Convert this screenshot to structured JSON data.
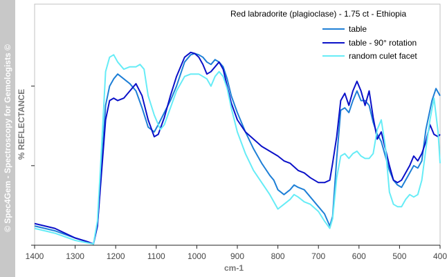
{
  "sidebar": {
    "text": "© Spec4Gem - Spectroscopy for Gemologists ©"
  },
  "chart_data": {
    "type": "line",
    "title": "Red labradorite (plagioclase) - 1.75 ct - Ethiopia",
    "xlabel": "cm-1",
    "ylabel": "% REFLECTANCE",
    "xlim": [
      1400,
      400
    ],
    "ylim": [
      0,
      100
    ],
    "x_ticks": [
      1400,
      1300,
      1200,
      1100,
      1000,
      900,
      800,
      700,
      600,
      500,
      400
    ],
    "y_ticks": [
      0,
      33,
      66
    ],
    "y_tick_labels_shown": false,
    "grid": false,
    "legend_position": "top-right",
    "series": [
      {
        "name": "table",
        "color": "#1e7fd6",
        "points": [
          [
            1400,
            8
          ],
          [
            1350,
            6
          ],
          [
            1300,
            3
          ],
          [
            1270,
            1.5
          ],
          [
            1255,
            0.5
          ],
          [
            1245,
            8
          ],
          [
            1235,
            32
          ],
          [
            1225,
            58
          ],
          [
            1215,
            66
          ],
          [
            1205,
            69
          ],
          [
            1195,
            71
          ],
          [
            1180,
            69
          ],
          [
            1165,
            67
          ],
          [
            1150,
            64
          ],
          [
            1135,
            57
          ],
          [
            1120,
            49
          ],
          [
            1105,
            47
          ],
          [
            1095,
            50
          ],
          [
            1080,
            55
          ],
          [
            1065,
            60
          ],
          [
            1050,
            66
          ],
          [
            1030,
            76
          ],
          [
            1015,
            79
          ],
          [
            1005,
            79.5
          ],
          [
            995,
            79
          ],
          [
            985,
            78
          ],
          [
            975,
            76
          ],
          [
            965,
            75
          ],
          [
            955,
            77
          ],
          [
            945,
            76
          ],
          [
            935,
            74
          ],
          [
            925,
            69
          ],
          [
            915,
            62
          ],
          [
            900,
            55
          ],
          [
            880,
            47
          ],
          [
            860,
            40
          ],
          [
            840,
            34
          ],
          [
            820,
            29
          ],
          [
            810,
            27
          ],
          [
            800,
            23
          ],
          [
            785,
            21
          ],
          [
            770,
            23
          ],
          [
            760,
            25
          ],
          [
            750,
            24
          ],
          [
            735,
            23
          ],
          [
            720,
            20
          ],
          [
            700,
            16
          ],
          [
            685,
            13
          ],
          [
            672,
            8
          ],
          [
            665,
            12
          ],
          [
            655,
            36
          ],
          [
            645,
            56
          ],
          [
            635,
            57
          ],
          [
            625,
            55
          ],
          [
            615,
            60
          ],
          [
            605,
            64
          ],
          [
            595,
            60
          ],
          [
            585,
            60
          ],
          [
            575,
            58
          ],
          [
            565,
            51
          ],
          [
            555,
            46
          ],
          [
            545,
            43
          ],
          [
            535,
            37
          ],
          [
            525,
            31
          ],
          [
            515,
            27
          ],
          [
            505,
            25
          ],
          [
            495,
            24
          ],
          [
            485,
            27
          ],
          [
            475,
            30
          ],
          [
            465,
            33
          ],
          [
            455,
            32
          ],
          [
            445,
            35
          ],
          [
            435,
            48
          ],
          [
            420,
            60
          ],
          [
            410,
            65
          ],
          [
            400,
            62
          ]
        ]
      },
      {
        "name": "table - 90° rotation",
        "color": "#0a10c8",
        "points": [
          [
            1400,
            9
          ],
          [
            1350,
            7
          ],
          [
            1300,
            3
          ],
          [
            1270,
            1.5
          ],
          [
            1255,
            0.5
          ],
          [
            1245,
            8
          ],
          [
            1235,
            30
          ],
          [
            1225,
            52
          ],
          [
            1215,
            60
          ],
          [
            1205,
            61
          ],
          [
            1195,
            60
          ],
          [
            1180,
            61
          ],
          [
            1165,
            64
          ],
          [
            1150,
            67
          ],
          [
            1135,
            62
          ],
          [
            1120,
            52
          ],
          [
            1105,
            45
          ],
          [
            1095,
            46
          ],
          [
            1080,
            53
          ],
          [
            1065,
            62
          ],
          [
            1050,
            70
          ],
          [
            1030,
            78
          ],
          [
            1015,
            80
          ],
          [
            1005,
            79.5
          ],
          [
            995,
            78
          ],
          [
            985,
            75
          ],
          [
            975,
            71
          ],
          [
            965,
            72
          ],
          [
            955,
            74
          ],
          [
            945,
            76
          ],
          [
            935,
            73
          ],
          [
            925,
            66
          ],
          [
            915,
            59
          ],
          [
            900,
            52
          ],
          [
            880,
            47
          ],
          [
            860,
            44
          ],
          [
            840,
            41
          ],
          [
            820,
            39
          ],
          [
            800,
            37
          ],
          [
            785,
            35
          ],
          [
            770,
            34
          ],
          [
            750,
            31
          ],
          [
            735,
            30
          ],
          [
            720,
            28
          ],
          [
            700,
            26
          ],
          [
            685,
            26
          ],
          [
            672,
            27
          ],
          [
            665,
            34
          ],
          [
            655,
            45
          ],
          [
            645,
            60
          ],
          [
            635,
            63
          ],
          [
            625,
            58
          ],
          [
            615,
            64
          ],
          [
            605,
            68
          ],
          [
            595,
            64
          ],
          [
            585,
            58
          ],
          [
            575,
            64
          ],
          [
            565,
            53
          ],
          [
            555,
            44
          ],
          [
            545,
            47
          ],
          [
            535,
            40
          ],
          [
            525,
            33
          ],
          [
            515,
            27
          ],
          [
            505,
            26
          ],
          [
            495,
            27
          ],
          [
            485,
            30
          ],
          [
            475,
            33
          ],
          [
            465,
            37
          ],
          [
            455,
            35
          ],
          [
            445,
            38
          ],
          [
            435,
            43
          ],
          [
            425,
            50
          ],
          [
            415,
            46
          ],
          [
            405,
            45
          ],
          [
            400,
            46
          ]
        ]
      },
      {
        "name": "random culet facet",
        "color": "#66ecf6",
        "points": [
          [
            1400,
            7
          ],
          [
            1350,
            5
          ],
          [
            1300,
            2
          ],
          [
            1270,
            1
          ],
          [
            1255,
            0.5
          ],
          [
            1245,
            10
          ],
          [
            1235,
            40
          ],
          [
            1225,
            72
          ],
          [
            1215,
            78
          ],
          [
            1205,
            79
          ],
          [
            1195,
            76
          ],
          [
            1180,
            73
          ],
          [
            1165,
            74
          ],
          [
            1150,
            74
          ],
          [
            1140,
            75
          ],
          [
            1130,
            73
          ],
          [
            1120,
            62
          ],
          [
            1105,
            54
          ],
          [
            1090,
            48
          ],
          [
            1080,
            50
          ],
          [
            1065,
            57
          ],
          [
            1050,
            64
          ],
          [
            1030,
            70
          ],
          [
            1015,
            71
          ],
          [
            1005,
            71
          ],
          [
            995,
            71
          ],
          [
            985,
            70
          ],
          [
            975,
            69
          ],
          [
            965,
            66
          ],
          [
            955,
            70
          ],
          [
            945,
            72
          ],
          [
            935,
            70
          ],
          [
            925,
            65
          ],
          [
            915,
            57
          ],
          [
            900,
            47
          ],
          [
            880,
            38
          ],
          [
            860,
            31
          ],
          [
            840,
            26
          ],
          [
            820,
            21
          ],
          [
            800,
            15
          ],
          [
            785,
            17
          ],
          [
            770,
            19
          ],
          [
            760,
            21
          ],
          [
            750,
            20
          ],
          [
            735,
            18
          ],
          [
            720,
            17
          ],
          [
            700,
            14
          ],
          [
            685,
            10
          ],
          [
            672,
            7
          ],
          [
            665,
            11
          ],
          [
            655,
            28
          ],
          [
            645,
            37
          ],
          [
            635,
            38
          ],
          [
            625,
            36
          ],
          [
            615,
            38
          ],
          [
            605,
            39
          ],
          [
            595,
            37
          ],
          [
            585,
            36
          ],
          [
            575,
            36
          ],
          [
            565,
            38
          ],
          [
            555,
            48
          ],
          [
            545,
            52
          ],
          [
            535,
            41
          ],
          [
            525,
            22
          ],
          [
            515,
            17
          ],
          [
            505,
            16
          ],
          [
            495,
            16
          ],
          [
            485,
            19
          ],
          [
            475,
            21
          ],
          [
            465,
            20
          ],
          [
            455,
            21
          ],
          [
            445,
            27
          ],
          [
            435,
            40
          ],
          [
            425,
            52
          ],
          [
            415,
            61
          ],
          [
            405,
            47
          ],
          [
            400,
            34
          ]
        ]
      }
    ]
  }
}
